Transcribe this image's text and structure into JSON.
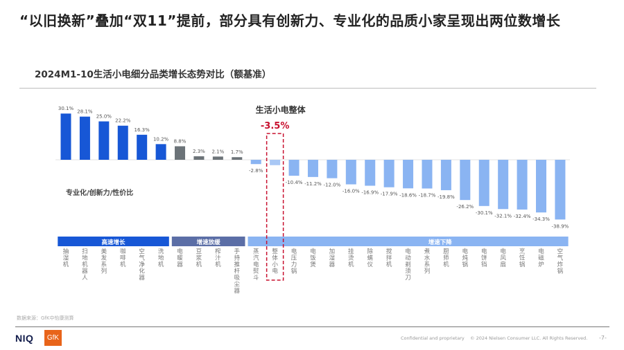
{
  "page": {
    "title": "“以旧换新”叠加“双11”提前，部分具有创新力、专业化的品质小家呈现出两位数增长",
    "subtitle": "2024M1-10生活小电细分品类增长态势对比（额基准）",
    "source": "数据来源：GfK中怡康测算",
    "confidential": "Confidential and proprietary",
    "copyright": "© 2024 Nielsen Consumer LLC. All Rights Reserved.",
    "page_number": "-7-",
    "logo_niq": "NIQ",
    "logo_gfk": "GfK"
  },
  "chart_data": {
    "type": "bar",
    "title": "2024M1-10生活小电细分品类增长态势对比（额基准）",
    "xlabel": "",
    "ylabel": "",
    "unit": "%",
    "categories": [
      "抽湿机",
      "扫地机器人",
      "美发系列",
      "咖啡机",
      "空气净化器",
      "洗地机",
      "电暖器",
      "豆浆机",
      "榨汁机",
      "手持推杆吸尘器",
      "蒸汽电熨斗",
      "整体小电",
      "电压力锅",
      "电饭煲",
      "加湿器",
      "挂烫机",
      "除螨仪",
      "搅拌机",
      "电动剃须刀",
      "煮水系列",
      "厨师机",
      "电炖锅",
      "电饼铛",
      "电风扇",
      "烹饪锅",
      "电磁炉",
      "空气炸锅"
    ],
    "values": [
      30.1,
      28.1,
      25.0,
      22.2,
      16.3,
      10.2,
      8.8,
      2.3,
      2.1,
      1.7,
      -2.8,
      -3.5,
      -10.4,
      -11.2,
      -12.0,
      -16.0,
      -16.9,
      -17.9,
      -18.6,
      -18.7,
      -19.8,
      -26.2,
      -30.1,
      -32.1,
      -32.4,
      -34.3,
      -38.9
    ],
    "value_labels": [
      "30.1%",
      "28.1%",
      "25.0%",
      "22.2%",
      "16.3%",
      "10.2%",
      "8.8%",
      "2.3%",
      "2.1%",
      "1.7%",
      "-2.8%",
      "",
      "-10.4%",
      "-11.2%",
      "-12.0%",
      "-16.0%",
      "-16.9%",
      "-17.9%",
      "-18.6%",
      "-18.7%",
      "-19.8%",
      "-26.2%",
      "-30.1%",
      "-32.1%",
      "-32.4%",
      "-34.3%",
      "-38.9%"
    ],
    "groups": [
      {
        "name": "高速增长",
        "start": 0,
        "end": 5,
        "color": "#1757d6"
      },
      {
        "name": "增速放缓",
        "start": 6,
        "end": 9,
        "color": "#5b6ea6"
      },
      {
        "name": "增速下降",
        "start": 10,
        "end": 26,
        "color": "#8ab4f2"
      }
    ],
    "bar_colors": {
      "high": "#1757d6",
      "slow": "#6c7378",
      "decline": "#8ab4f2"
    },
    "highlight": {
      "index": 11,
      "label": "生活小电整体",
      "value_label": "-3.5%",
      "color": "#c8102e"
    },
    "annotation": "专业化/创新力/性价比",
    "ylim": [
      -40,
      32
    ],
    "grid": false,
    "legend": "none"
  }
}
